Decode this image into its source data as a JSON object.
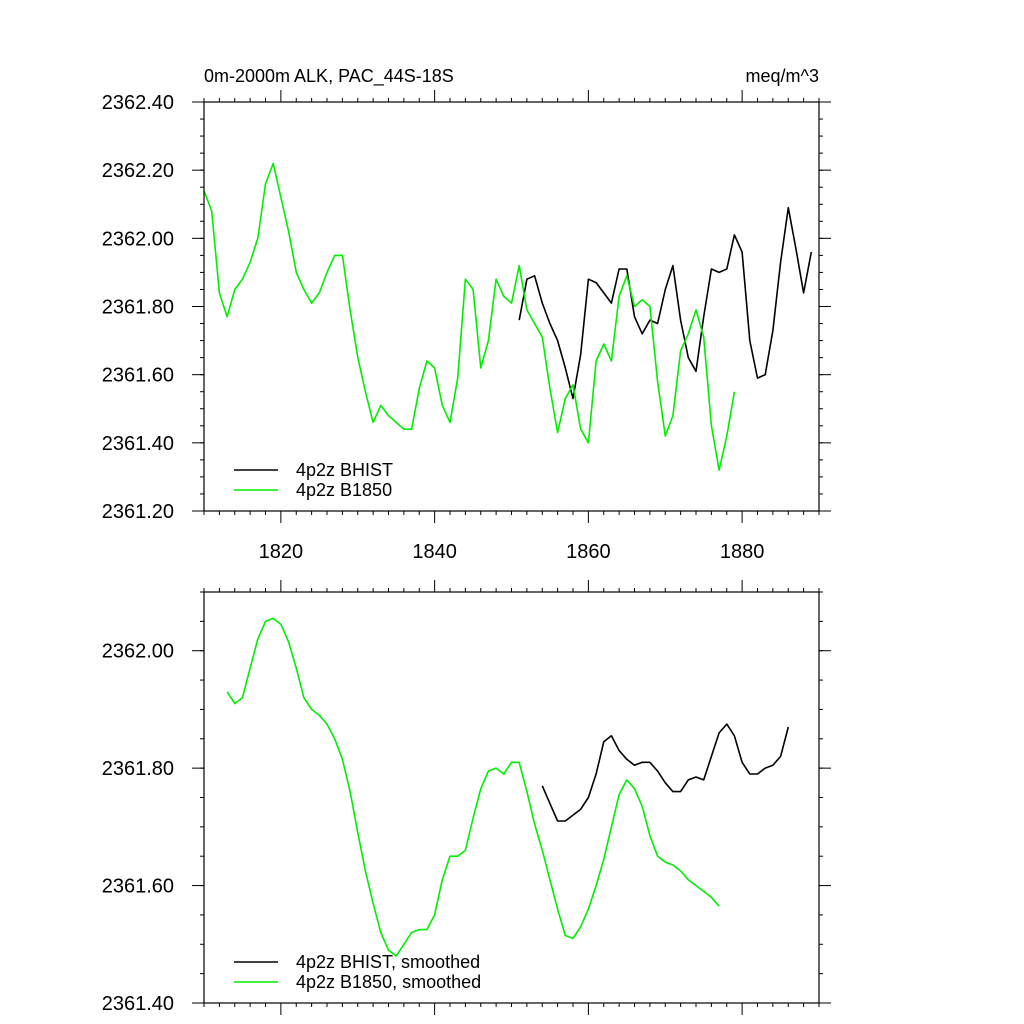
{
  "chart_data": [
    {
      "type": "line",
      "title": "0m-2000m ALK, PAC_44S-18S",
      "units": "meq/m^3",
      "xlabel": "",
      "ylabel": "",
      "xlim": [
        1810,
        1890
      ],
      "ylim": [
        2361.2,
        2362.4
      ],
      "xticks": [
        1820,
        1840,
        1860,
        1880
      ],
      "xtick_labels": [
        "1820",
        "1840",
        "1860",
        "1880"
      ],
      "yticks": [
        2361.2,
        2361.4,
        2361.6,
        2361.8,
        2362.0,
        2362.2,
        2362.4
      ],
      "ytick_labels": [
        "2361.20",
        "2361.40",
        "2361.60",
        "2361.80",
        "2362.00",
        "2362.20",
        "2362.40"
      ],
      "legend_position": "bottom-left",
      "series": [
        {
          "name": "4p2z BHIST",
          "color": "#000000",
          "x": [
            1851,
            1852,
            1853,
            1854,
            1855,
            1856,
            1857,
            1858,
            1859,
            1860,
            1861,
            1862,
            1863,
            1864,
            1865,
            1866,
            1867,
            1868,
            1869,
            1870,
            1871,
            1872,
            1873,
            1874,
            1875,
            1876,
            1877,
            1878,
            1879,
            1880,
            1881,
            1882,
            1883,
            1884,
            1885,
            1886,
            1887,
            1888,
            1889
          ],
          "values": [
            2361.76,
            2361.88,
            2361.89,
            2361.81,
            2361.75,
            2361.7,
            2361.62,
            2361.53,
            2361.66,
            2361.88,
            2361.87,
            2361.84,
            2361.81,
            2361.91,
            2361.91,
            2361.77,
            2361.72,
            2361.76,
            2361.75,
            2361.85,
            2361.92,
            2361.76,
            2361.65,
            2361.61,
            2361.77,
            2361.91,
            2361.9,
            2361.91,
            2362.01,
            2361.96,
            2361.7,
            2361.59,
            2361.6,
            2361.73,
            2361.93,
            2362.09,
            2361.97,
            2361.84,
            2361.96
          ]
        },
        {
          "name": "4p2z B1850",
          "color": "#00ee00",
          "x": [
            1810,
            1811,
            1812,
            1813,
            1814,
            1815,
            1816,
            1817,
            1818,
            1819,
            1820,
            1821,
            1822,
            1823,
            1824,
            1825,
            1826,
            1827,
            1828,
            1829,
            1830,
            1831,
            1832,
            1833,
            1834,
            1835,
            1836,
            1837,
            1838,
            1839,
            1840,
            1841,
            1842,
            1843,
            1844,
            1845,
            1846,
            1847,
            1848,
            1849,
            1850,
            1851,
            1852,
            1853,
            1854,
            1855,
            1856,
            1857,
            1858,
            1859,
            1860,
            1861,
            1862,
            1863,
            1864,
            1865,
            1866,
            1867,
            1868,
            1869,
            1870,
            1871,
            1872,
            1873,
            1874,
            1875,
            1876,
            1877,
            1878,
            1879
          ],
          "values": [
            2362.14,
            2362.08,
            2361.84,
            2361.77,
            2361.85,
            2361.88,
            2361.93,
            2362.0,
            2362.16,
            2362.22,
            2362.12,
            2362.02,
            2361.9,
            2361.85,
            2361.81,
            2361.84,
            2361.9,
            2361.95,
            2361.95,
            2361.79,
            2361.65,
            2361.55,
            2361.46,
            2361.51,
            2361.48,
            2361.46,
            2361.44,
            2361.44,
            2361.56,
            2361.64,
            2361.62,
            2361.51,
            2361.46,
            2361.59,
            2361.88,
            2361.85,
            2361.62,
            2361.7,
            2361.88,
            2361.83,
            2361.81,
            2361.92,
            2361.79,
            2361.75,
            2361.71,
            2361.56,
            2361.43,
            2361.53,
            2361.57,
            2361.44,
            2361.4,
            2361.64,
            2361.69,
            2361.64,
            2361.83,
            2361.89,
            2361.8,
            2361.82,
            2361.8,
            2361.58,
            2361.42,
            2361.48,
            2361.67,
            2361.72,
            2361.79,
            2361.71,
            2361.45,
            2361.32,
            2361.42,
            2361.55
          ]
        }
      ]
    },
    {
      "type": "line",
      "title": "",
      "xlabel": "",
      "ylabel": "",
      "xlim": [
        1810,
        1890
      ],
      "ylim": [
        2361.4,
        2362.1
      ],
      "xticks": [
        1820,
        1840,
        1860,
        1880
      ],
      "yticks": [
        2361.4,
        2361.6,
        2361.8,
        2362.0
      ],
      "ytick_labels": [
        "2361.40",
        "2361.60",
        "2361.80",
        "2362.00"
      ],
      "legend_position": "bottom-left",
      "series": [
        {
          "name": "4p2z BHIST, smoothed",
          "color": "#000000",
          "x": [
            1854,
            1855,
            1856,
            1857,
            1858,
            1859,
            1860,
            1861,
            1862,
            1863,
            1864,
            1865,
            1866,
            1867,
            1868,
            1869,
            1870,
            1871,
            1872,
            1873,
            1874,
            1875,
            1876,
            1877,
            1878,
            1879,
            1880,
            1881,
            1882,
            1883,
            1884,
            1885,
            1886
          ],
          "values": [
            2361.77,
            2361.74,
            2361.71,
            2361.71,
            2361.72,
            2361.73,
            2361.75,
            2361.79,
            2361.845,
            2361.855,
            2361.83,
            2361.815,
            2361.805,
            2361.81,
            2361.81,
            2361.795,
            2361.775,
            2361.76,
            2361.76,
            2361.78,
            2361.785,
            2361.78,
            2361.82,
            2361.86,
            2361.875,
            2361.855,
            2361.81,
            2361.79,
            2361.79,
            2361.8,
            2361.805,
            2361.82,
            2361.87
          ]
        },
        {
          "name": "4p2z B1850, smoothed",
          "color": "#00ee00",
          "x": [
            1813,
            1814,
            1815,
            1816,
            1817,
            1818,
            1819,
            1820,
            1821,
            1822,
            1823,
            1824,
            1825,
            1826,
            1827,
            1828,
            1829,
            1830,
            1831,
            1832,
            1833,
            1834,
            1835,
            1836,
            1837,
            1838,
            1839,
            1840,
            1841,
            1842,
            1843,
            1844,
            1845,
            1846,
            1847,
            1848,
            1849,
            1850,
            1851,
            1852,
            1853,
            1854,
            1855,
            1856,
            1857,
            1858,
            1859,
            1860,
            1861,
            1862,
            1863,
            1864,
            1865,
            1866,
            1867,
            1868,
            1869,
            1870,
            1871,
            1872,
            1873,
            1874,
            1875,
            1876,
            1877
          ],
          "values": [
            2361.93,
            2361.91,
            2361.92,
            2361.97,
            2362.02,
            2362.05,
            2362.055,
            2362.045,
            2362.015,
            2361.97,
            2361.92,
            2361.9,
            2361.89,
            2361.875,
            2361.85,
            2361.815,
            2361.76,
            2361.69,
            2361.625,
            2361.57,
            2361.52,
            2361.49,
            2361.48,
            2361.5,
            2361.52,
            2361.525,
            2361.525,
            2361.55,
            2361.61,
            2361.65,
            2361.65,
            2361.66,
            2361.715,
            2361.765,
            2361.795,
            2361.8,
            2361.79,
            2361.81,
            2361.81,
            2361.76,
            2361.705,
            2361.66,
            2361.61,
            2361.56,
            2361.515,
            2361.51,
            2361.53,
            2361.56,
            2361.6,
            2361.645,
            2361.7,
            2361.755,
            2361.78,
            2361.765,
            2361.735,
            2361.685,
            2361.65,
            2361.64,
            2361.635,
            2361.625,
            2361.61,
            2361.6,
            2361.59,
            2361.58,
            2361.565
          ]
        }
      ]
    }
  ]
}
